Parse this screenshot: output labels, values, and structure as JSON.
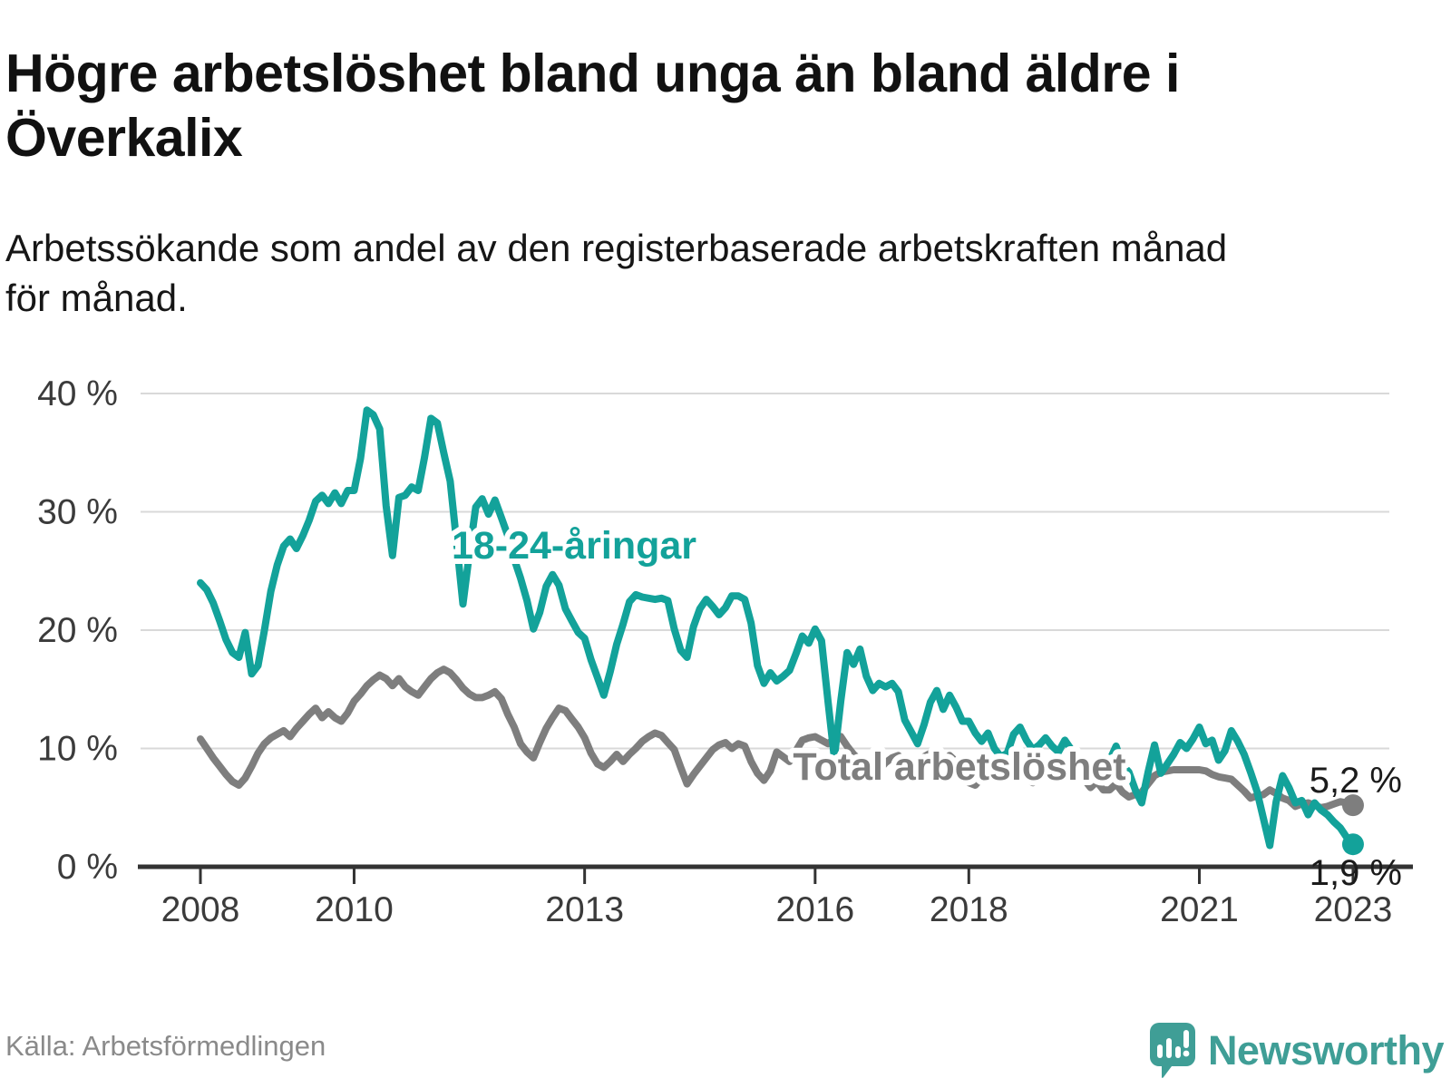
{
  "header": {
    "title_lines": [
      "Högre arbetslöshet bland unga än bland äldre i",
      "Överkalix"
    ],
    "subtitle_lines": [
      "Arbetssökande som andel av den registerbaserade arbetskraften månad",
      "för månad."
    ]
  },
  "footer": {
    "source": "Källa: Arbetsförmedlingen",
    "brand": "Newsworthy"
  },
  "colors": {
    "youth_line": "#13a29a",
    "total_line": "#7e7e7e",
    "grid": "#d9d9d9",
    "axis": "#333333",
    "axis_text": "#3b3b3b",
    "end_label_text": "#1b1b1b",
    "logo": "#3f9e96",
    "label_halo": "#ffffff"
  },
  "chart_data": {
    "type": "line",
    "unit": "%",
    "frequency": "monthly",
    "x_start": {
      "year": 2008,
      "month": 1
    },
    "x_end": {
      "year": 2023,
      "month": 1
    },
    "ylim": [
      0,
      40
    ],
    "grid": true,
    "x_ticks": [
      {
        "year": 2008,
        "label": "2008"
      },
      {
        "year": 2010,
        "label": "2010"
      },
      {
        "year": 2013,
        "label": "2013"
      },
      {
        "year": 2016,
        "label": "2016"
      },
      {
        "year": 2018,
        "label": "2018"
      },
      {
        "year": 2021,
        "label": "2021"
      },
      {
        "year": 2023,
        "label": "2023"
      }
    ],
    "y_ticks": [
      {
        "value": 40,
        "label": "40 %"
      },
      {
        "value": 30,
        "label": "30 %"
      },
      {
        "value": 20,
        "label": "20 %"
      },
      {
        "value": 10,
        "label": "10 %"
      },
      {
        "value": 0,
        "label": "0 %"
      }
    ],
    "series": [
      {
        "name": "Total arbetslöshet",
        "color": "#7e7e7e",
        "end_label": "5,2 %",
        "end_value": 5.2,
        "values": [
          10.8,
          10.0,
          9.2,
          8.5,
          7.8,
          7.2,
          6.9,
          7.5,
          8.5,
          9.6,
          10.4,
          10.9,
          11.2,
          11.5,
          11.0,
          11.7,
          12.3,
          12.9,
          13.4,
          12.6,
          13.1,
          12.6,
          12.3,
          13.0,
          14.0,
          14.6,
          15.3,
          15.8,
          16.2,
          15.9,
          15.3,
          15.9,
          15.2,
          14.8,
          14.5,
          15.2,
          15.9,
          16.4,
          16.7,
          16.4,
          15.8,
          15.1,
          14.6,
          14.3,
          14.3,
          14.5,
          14.8,
          14.2,
          12.9,
          11.8,
          10.4,
          9.7,
          9.2,
          10.5,
          11.7,
          12.6,
          13.4,
          13.2,
          12.5,
          11.8,
          10.9,
          9.6,
          8.7,
          8.4,
          8.9,
          9.5,
          8.9,
          9.5,
          10.0,
          10.6,
          11.0,
          11.3,
          11.1,
          10.5,
          9.9,
          8.4,
          7.0,
          7.8,
          8.5,
          9.2,
          9.9,
          10.3,
          10.5,
          10.0,
          10.4,
          10.2,
          8.9,
          7.9,
          7.3,
          8.1,
          9.7,
          9.3,
          8.9,
          9.8,
          10.7,
          10.9,
          11.0,
          10.7,
          10.4,
          10.8,
          11.0,
          10.2,
          9.5,
          9.0,
          8.7,
          8.4,
          8.2,
          8.8,
          9.2,
          9.4,
          8.9,
          8.4,
          8.7,
          9.3,
          9.6,
          9.2,
          8.8,
          9.4,
          8.9,
          7.9,
          7.1,
          6.9,
          7.5,
          8.3,
          8.7,
          8.2,
          8.6,
          9.1,
          7.7,
          7.4,
          7.1,
          7.8,
          8.4,
          8.9,
          8.3,
          7.9,
          8.7,
          8.0,
          7.4,
          6.7,
          7.2,
          6.5,
          6.5,
          7.0,
          6.3,
          5.9,
          6.1,
          6.3,
          7.0,
          7.7,
          8.0,
          8.1,
          8.2,
          8.2,
          8.2,
          8.2,
          8.2,
          8.1,
          7.8,
          7.6,
          7.5,
          7.4,
          6.9,
          6.4,
          5.8,
          6.0,
          6.1,
          6.5,
          6.2,
          5.8,
          5.6,
          5.1,
          5.3,
          5.4,
          5.2,
          5.0,
          5.1,
          5.3,
          5.5,
          5.4,
          5.2
        ]
      },
      {
        "name": "18-24-åringar",
        "color": "#13a29a",
        "end_label": "1,9 %",
        "end_value": 1.9,
        "values": [
          24.0,
          23.4,
          22.3,
          20.8,
          19.2,
          18.1,
          17.7,
          19.8,
          16.3,
          17.0,
          20.0,
          23.3,
          25.5,
          27.1,
          27.7,
          26.9,
          28.0,
          29.3,
          30.9,
          31.4,
          30.7,
          31.6,
          30.7,
          31.8,
          31.8,
          34.5,
          38.6,
          38.2,
          37.0,
          30.5,
          26.3,
          31.2,
          31.4,
          32.1,
          31.8,
          34.6,
          37.9,
          37.5,
          35.0,
          32.6,
          27.5,
          22.2,
          26.5,
          30.4,
          31.1,
          29.8,
          31.0,
          29.5,
          28.0,
          26.0,
          24.4,
          22.5,
          20.1,
          21.5,
          23.7,
          24.7,
          23.8,
          21.8,
          20.8,
          19.8,
          19.3,
          17.5,
          16.0,
          14.5,
          16.5,
          18.8,
          20.5,
          22.4,
          23.0,
          22.8,
          22.7,
          22.6,
          22.7,
          22.5,
          20.1,
          18.3,
          17.7,
          20.3,
          21.8,
          22.6,
          22.0,
          21.3,
          21.9,
          22.9,
          22.9,
          22.6,
          20.6,
          17.0,
          15.5,
          16.4,
          15.7,
          16.1,
          16.6,
          18.0,
          19.5,
          18.9,
          20.1,
          19.1,
          14.0,
          9.2,
          14.0,
          18.1,
          17.1,
          18.4,
          16.1,
          14.9,
          15.5,
          15.2,
          15.5,
          14.8,
          12.4,
          11.4,
          10.4,
          12.0,
          13.9,
          14.9,
          13.3,
          14.5,
          13.5,
          12.3,
          12.3,
          11.3,
          10.6,
          11.3,
          10.0,
          9.3,
          9.6,
          11.2,
          11.8,
          10.7,
          9.9,
          10.3,
          10.9,
          10.2,
          9.7,
          10.7,
          9.9,
          9.2,
          8.2,
          8.8,
          8.2,
          7.9,
          9.0,
          10.2,
          8.6,
          8.0,
          6.5,
          5.4,
          8.0,
          10.3,
          7.9,
          8.7,
          9.5,
          10.5,
          10.0,
          10.8,
          11.8,
          10.4,
          10.7,
          9.0,
          9.8,
          11.5,
          10.6,
          9.5,
          8.0,
          6.4,
          4.1,
          1.8,
          5.5,
          7.7,
          6.7,
          5.4,
          5.6,
          4.4,
          5.4,
          4.8,
          4.4,
          3.8,
          3.3,
          2.5,
          1.9
        ]
      }
    ]
  }
}
